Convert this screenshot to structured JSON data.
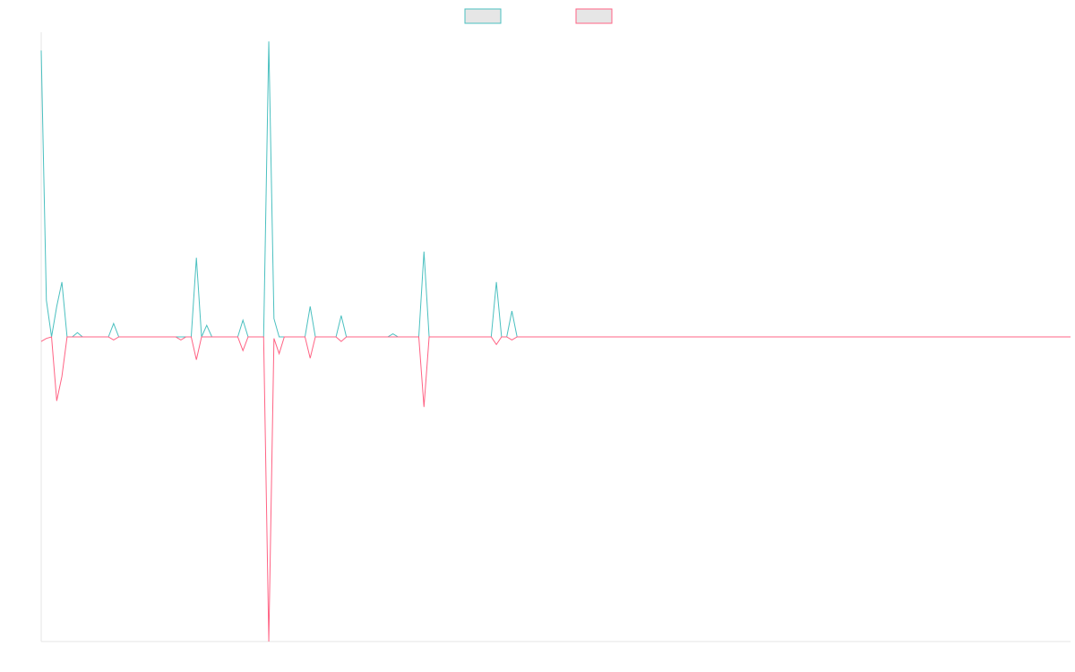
{
  "chart_data": {
    "type": "line",
    "title": "",
    "xlabel": "",
    "ylabel": "",
    "x_count": 200,
    "ylim": [
      -100,
      100
    ],
    "grid": false,
    "legend_placement": "top-center",
    "series": [
      {
        "color": "#4bc0c0",
        "fill": "#e6e6e6",
        "points": {
          "0": 94,
          "1": 12,
          "3": 10,
          "4": 18,
          "7": 1.4,
          "14": 4.4,
          "30": 26,
          "32": 3.8,
          "39": 5.5,
          "44": 97,
          "45": 6,
          "52": 10,
          "58": 7,
          "68": 1,
          "74": 28,
          "88": 18,
          "91": 8.5
        },
        "values": []
      },
      {
        "color": "#ff6384",
        "fill": "#e6e6e6",
        "points": {
          "0": -1.5,
          "1": -0.5,
          "3": -21,
          "4": -13,
          "14": -1,
          "27": -1,
          "30": -7.5,
          "39": -4.5,
          "44": -100,
          "45": -0.5,
          "46": -5.5,
          "52": -7,
          "58": -1.5,
          "74": -23,
          "88": -2.5,
          "91": -1
        }
      }
    ]
  }
}
